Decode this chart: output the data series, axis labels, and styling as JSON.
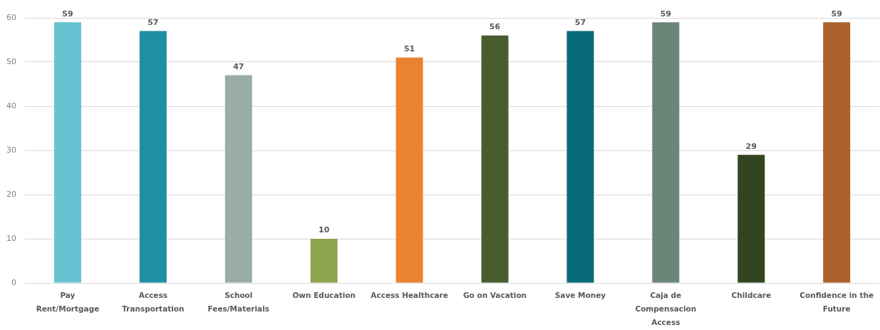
{
  "chart_data": {
    "type": "bar",
    "categories": [
      "Pay Rent/Mortgage",
      "Access Transportation",
      "School Fees/Materials",
      "Own Education",
      "Access Healthcare",
      "Go on Vacation",
      "Save Money",
      "Caja de Compensacion Access",
      "Childcare",
      "Confidence in the Future"
    ],
    "values": [
      59,
      57,
      47,
      10,
      51,
      56,
      57,
      59,
      29,
      59
    ],
    "colors": [
      "#67c3d1",
      "#1f8fa4",
      "#9aada4",
      "#8ea44f",
      "#eb822f",
      "#475d2f",
      "#096b7a",
      "#6b8579",
      "#334420",
      "#ab6129"
    ],
    "ylim": [
      0,
      60
    ],
    "yticks": [
      0,
      10,
      20,
      30,
      40,
      50,
      60
    ],
    "grid": "y",
    "data_labels": true
  }
}
